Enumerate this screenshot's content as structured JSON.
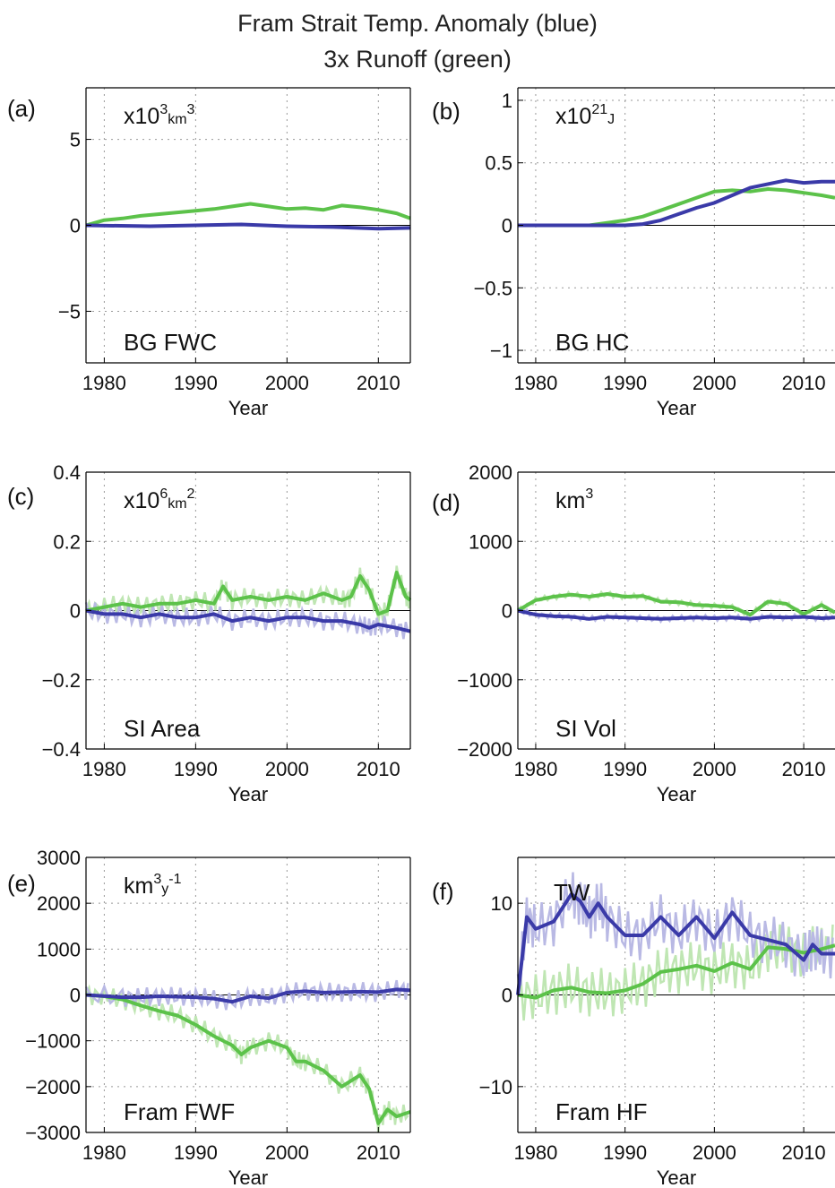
{
  "figure": {
    "title_line1": "Fram Strait Temp. Anomaly (blue)",
    "title_line2": "3x Runoff (green)"
  },
  "colors": {
    "blue": "#3a3aa8",
    "green": "#5cc24a",
    "blue_light": "#b9b9e4",
    "green_light": "#bfe6b3"
  },
  "chart_data": [
    {
      "type": "line",
      "id": "a",
      "panel_label": "(a)",
      "units_base": "x10",
      "units_sup": "3",
      "units_tail": "km",
      "units_sup2": "3",
      "inner_label": "BG FWC",
      "xlabel": "Year",
      "xlim": [
        1978,
        2013.5
      ],
      "ylim": [
        -8,
        8
      ],
      "yticks": [
        -5,
        0,
        5
      ],
      "ytick_labels": [
        "−5",
        "0",
        "5"
      ],
      "xticks": [
        1980,
        1990,
        2000,
        2010
      ],
      "grid": true,
      "zero_line": true,
      "series": [
        {
          "color": "green",
          "x": [
            1978,
            1980,
            1982,
            1984,
            1986,
            1988,
            1990,
            1992,
            1994,
            1996,
            1998,
            2000,
            2002,
            2004,
            2006,
            2008,
            2010,
            2012,
            2013.5
          ],
          "y": [
            0,
            0.3,
            0.4,
            0.55,
            0.65,
            0.75,
            0.85,
            0.95,
            1.1,
            1.25,
            1.1,
            0.95,
            1.0,
            0.9,
            1.15,
            1.05,
            0.9,
            0.7,
            0.4
          ]
        },
        {
          "color": "blue",
          "x": [
            1978,
            1985,
            1990,
            1995,
            2000,
            2005,
            2010,
            2013.5
          ],
          "y": [
            0,
            -0.05,
            0,
            0.05,
            -0.05,
            -0.1,
            -0.2,
            -0.15
          ]
        }
      ]
    },
    {
      "type": "line",
      "id": "b",
      "panel_label": "(b)",
      "units_base": "x10",
      "units_sup": "21",
      "units_tail": "J",
      "units_sup2": "",
      "inner_label": "BG HC",
      "xlabel": "Year",
      "xlim": [
        1978,
        2013.5
      ],
      "ylim": [
        -1.1,
        1.1
      ],
      "yticks": [
        -1,
        -0.5,
        0,
        0.5,
        1
      ],
      "ytick_labels": [
        "−1",
        "−0.5",
        "0",
        "0.5",
        "1"
      ],
      "xticks": [
        1980,
        1990,
        2000,
        2010
      ],
      "grid": true,
      "zero_line": true,
      "series": [
        {
          "color": "green",
          "x": [
            1978,
            1986,
            1988,
            1990,
            1992,
            1994,
            1996,
            1998,
            2000,
            2002,
            2004,
            2006,
            2008,
            2010,
            2012,
            2013.5
          ],
          "y": [
            0,
            0,
            0.02,
            0.04,
            0.07,
            0.12,
            0.17,
            0.22,
            0.27,
            0.28,
            0.27,
            0.29,
            0.28,
            0.26,
            0.24,
            0.22
          ]
        },
        {
          "color": "blue",
          "x": [
            1978,
            1990,
            1992,
            1994,
            1996,
            1998,
            2000,
            2002,
            2004,
            2006,
            2008,
            2010,
            2012,
            2013.5
          ],
          "y": [
            0,
            0,
            0.01,
            0.04,
            0.09,
            0.14,
            0.18,
            0.24,
            0.3,
            0.33,
            0.36,
            0.34,
            0.35,
            0.35
          ]
        }
      ]
    },
    {
      "type": "line",
      "id": "c",
      "panel_label": "(c)",
      "units_base": "x10",
      "units_sup": "6",
      "units_tail": "km",
      "units_sup2": "2",
      "inner_label": "SI Area",
      "xlabel": "Year",
      "xlim": [
        1978,
        2013.5
      ],
      "ylim": [
        -0.4,
        0.4
      ],
      "yticks": [
        -0.4,
        -0.2,
        0,
        0.2,
        0.4
      ],
      "ytick_labels": [
        "−0.4",
        "−0.2",
        "0",
        "0.2",
        "0.4"
      ],
      "xticks": [
        1980,
        1990,
        2000,
        2010
      ],
      "grid": true,
      "zero_line": true,
      "series": [
        {
          "color": "green",
          "x": [
            1978,
            1980,
            1982,
            1984,
            1986,
            1988,
            1990,
            1992,
            1993,
            1994,
            1996,
            1998,
            2000,
            2002,
            2004,
            2006,
            2007,
            2008,
            2009,
            2010,
            2011,
            2012,
            2013,
            2013.5
          ],
          "y": [
            0,
            0.01,
            0.02,
            0.01,
            0.02,
            0.02,
            0.03,
            0.02,
            0.07,
            0.03,
            0.04,
            0.03,
            0.04,
            0.03,
            0.05,
            0.03,
            0.04,
            0.1,
            0.06,
            -0.01,
            0,
            0.11,
            0.04,
            0.03
          ]
        },
        {
          "color": "blue",
          "x": [
            1978,
            1980,
            1982,
            1984,
            1986,
            1988,
            1990,
            1992,
            1994,
            1996,
            1998,
            2000,
            2002,
            2004,
            2006,
            2008,
            2009,
            2010,
            2012,
            2013.5
          ],
          "y": [
            0,
            -0.01,
            -0.01,
            -0.02,
            -0.01,
            -0.02,
            -0.02,
            -0.01,
            -0.03,
            -0.02,
            -0.03,
            -0.02,
            -0.02,
            -0.03,
            -0.03,
            -0.04,
            -0.05,
            -0.04,
            -0.05,
            -0.06
          ]
        }
      ]
    },
    {
      "type": "line",
      "id": "d",
      "panel_label": "(d)",
      "units_base": "",
      "units_sup": "",
      "units_tail": "km",
      "units_sup2": "3",
      "inner_label": "SI Vol",
      "xlabel": "Year",
      "xlim": [
        1978,
        2013.5
      ],
      "ylim": [
        -2000,
        2000
      ],
      "yticks": [
        -2000,
        -1000,
        0,
        1000,
        2000
      ],
      "ytick_labels": [
        "−2000",
        "−1000",
        "0",
        "1000",
        "2000"
      ],
      "xticks": [
        1980,
        1990,
        2000,
        2010
      ],
      "grid": true,
      "zero_line": true,
      "series": [
        {
          "color": "green",
          "x": [
            1978,
            1980,
            1982,
            1984,
            1986,
            1988,
            1990,
            1992,
            1994,
            1996,
            1998,
            2000,
            2002,
            2004,
            2006,
            2008,
            2010,
            2012,
            2013.5
          ],
          "y": [
            0,
            150,
            200,
            230,
            200,
            240,
            200,
            210,
            130,
            120,
            80,
            70,
            50,
            -60,
            130,
            100,
            -50,
            80,
            -30
          ]
        },
        {
          "color": "blue",
          "x": [
            1978,
            1980,
            1982,
            1984,
            1986,
            1988,
            1990,
            1992,
            1994,
            1996,
            1998,
            2000,
            2002,
            2004,
            2006,
            2008,
            2010,
            2012,
            2013.5
          ],
          "y": [
            0,
            -60,
            -80,
            -90,
            -120,
            -90,
            -100,
            -110,
            -120,
            -110,
            -100,
            -110,
            -100,
            -120,
            -90,
            -100,
            -90,
            -110,
            -100
          ]
        }
      ]
    },
    {
      "type": "line",
      "id": "e",
      "panel_label": "(e)",
      "units_base": "",
      "units_sup": "3",
      "units_tail": "km",
      "units_sup2": "-1",
      "units_mid": "y",
      "inner_label": "Fram FWF",
      "xlabel": "Year",
      "xlim": [
        1978,
        2013.5
      ],
      "ylim": [
        -3000,
        3000
      ],
      "yticks": [
        -3000,
        -2000,
        -1000,
        0,
        1000,
        2000,
        3000
      ],
      "ytick_labels": [
        "−3000",
        "−2000",
        "−1000",
        "0",
        "1000",
        "2000",
        "3000"
      ],
      "xticks": [
        1980,
        1990,
        2000,
        2010
      ],
      "grid": true,
      "zero_line": true,
      "series": [
        {
          "color": "green",
          "x": [
            1978,
            1980,
            1982,
            1984,
            1986,
            1988,
            1990,
            1992,
            1994,
            1995,
            1996,
            1998,
            2000,
            2001,
            2002,
            2004,
            2006,
            2008,
            2009,
            2010,
            2011,
            2012,
            2013.5
          ],
          "y": [
            0,
            -30,
            -100,
            -230,
            -350,
            -450,
            -650,
            -900,
            -1100,
            -1300,
            -1150,
            -1000,
            -1150,
            -1450,
            -1450,
            -1650,
            -2000,
            -1750,
            -2050,
            -2800,
            -2500,
            -2650,
            -2550
          ]
        },
        {
          "color": "blue",
          "x": [
            1978,
            1982,
            1984,
            1986,
            1988,
            1990,
            1992,
            1994,
            1996,
            1998,
            2000,
            2002,
            2004,
            2006,
            2008,
            2010,
            2012,
            2013.5
          ],
          "y": [
            0,
            -50,
            -50,
            -30,
            -40,
            -50,
            -80,
            -150,
            -30,
            -70,
            50,
            80,
            50,
            60,
            70,
            60,
            120,
            100
          ]
        }
      ]
    },
    {
      "type": "line",
      "id": "f",
      "panel_label": "(f)",
      "units_base": "",
      "units_sup": "",
      "units_tail": "",
      "units_sup2": "",
      "inner_label": "Fram HF",
      "top_label": "TW",
      "xlabel": "Year",
      "xlim": [
        1978,
        2013.5
      ],
      "ylim": [
        -15,
        15
      ],
      "yticks": [
        -10,
        0,
        10
      ],
      "ytick_labels": [
        "−10",
        "0",
        "10"
      ],
      "xticks": [
        1980,
        1990,
        2000,
        2010
      ],
      "grid": true,
      "zero_line": true,
      "series": [
        {
          "color": "green",
          "x": [
            1978,
            1980,
            1982,
            1984,
            1986,
            1988,
            1990,
            1992,
            1994,
            1996,
            1998,
            2000,
            2002,
            2004,
            2006,
            2008,
            2010,
            2012,
            2013.5
          ],
          "y": [
            0,
            -0.3,
            0.5,
            0.8,
            0.3,
            0.2,
            0.5,
            1.2,
            2.5,
            2.8,
            3.2,
            2.6,
            3.5,
            2.8,
            5.2,
            5.0,
            4.6,
            5.0,
            5.4
          ]
        },
        {
          "color": "blue",
          "x": [
            1978,
            1979,
            1980,
            1982,
            1984,
            1985,
            1986,
            1987,
            1988,
            1990,
            1992,
            1994,
            1996,
            1998,
            2000,
            2002,
            2004,
            2006,
            2008,
            2010,
            2011,
            2012,
            2013.5
          ],
          "y": [
            0,
            8.5,
            7.2,
            8.0,
            11.0,
            10.2,
            8.5,
            10.0,
            8.5,
            6.5,
            6.5,
            8.5,
            6.5,
            8.5,
            6.2,
            9.0,
            6.5,
            6.0,
            5.5,
            3.8,
            5.5,
            4.5,
            4.5
          ]
        }
      ]
    }
  ]
}
